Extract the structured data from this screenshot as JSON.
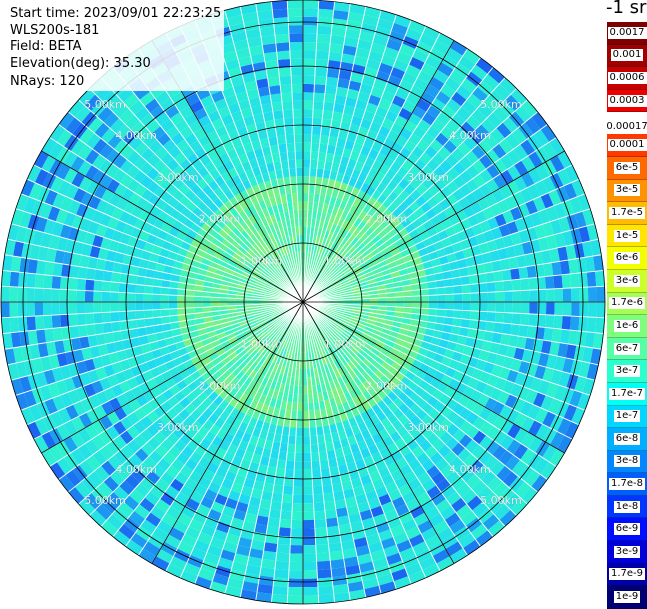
{
  "info": {
    "start_time": "Start time: 2023/09/01 22:23:25",
    "instrument": "WLS200s-181",
    "field": "Field: BETA",
    "elevation": "Elevation(deg): 35.30",
    "nrays": "NRays: 120"
  },
  "colorbar": {
    "unit": "-1 sr",
    "top_group": [
      {
        "label": "0.0017",
        "color": "#800000"
      },
      {
        "label": "0.001",
        "color": "#a00000"
      },
      {
        "label": "0.0006",
        "color": "#c80000"
      },
      {
        "label": "0.0003",
        "color": "#ee0000"
      }
    ],
    "gap_label": "0.00017",
    "main_group": [
      {
        "label": "0.0001",
        "color": "#ff3a00"
      },
      {
        "label": "6e-5",
        "color": "#ff6a00"
      },
      {
        "label": "3e-5",
        "color": "#ff9200"
      },
      {
        "label": "1.7e-5",
        "color": "#ffbb00"
      },
      {
        "label": "1e-5",
        "color": "#ffe600"
      },
      {
        "label": "6e-6",
        "color": "#f2ff00"
      },
      {
        "label": "3e-6",
        "color": "#caff2a"
      },
      {
        "label": "1.7e-6",
        "color": "#a4ff55"
      },
      {
        "label": "1e-6",
        "color": "#7dff7d"
      },
      {
        "label": "6e-7",
        "color": "#55ffa6"
      },
      {
        "label": "3e-7",
        "color": "#2affcd"
      },
      {
        "label": "1.7e-7",
        "color": "#00fff5"
      },
      {
        "label": "1e-7",
        "color": "#00d6ff"
      },
      {
        "label": "6e-8",
        "color": "#00aeff"
      },
      {
        "label": "3e-8",
        "color": "#0086ff"
      },
      {
        "label": "1.7e-8",
        "color": "#005eff"
      },
      {
        "label": "1e-8",
        "color": "#0036ff"
      },
      {
        "label": "6e-9",
        "color": "#000eff"
      },
      {
        "label": "3e-9",
        "color": "#0000d8"
      },
      {
        "label": "1.7e-9",
        "color": "#0000a6"
      },
      {
        "label": "1e-9",
        "color": "#000070"
      }
    ]
  },
  "ppi": {
    "range_labels": [
      "1.00km",
      "2.00km",
      "3.00km",
      "4.00km",
      "5.00km"
    ],
    "ray_count": 120,
    "colors": {
      "ring": "#000000",
      "ray_gap": "#ffffff",
      "near": "#7ff27f",
      "mid": "#2ef2cf",
      "far": "#1fd8f2",
      "dark": "#1a5ef0"
    }
  }
}
